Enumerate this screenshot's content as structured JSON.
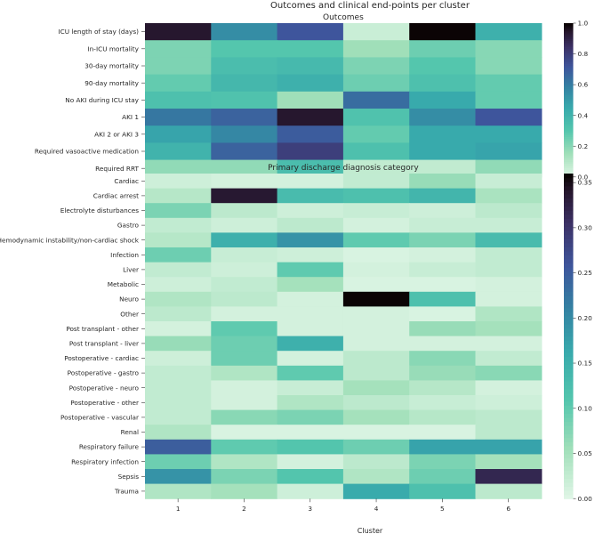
{
  "figure_title": "Outcomes and clinical end-points per cluster",
  "x_axis_label": "Cluster",
  "chart_data": [
    {
      "type": "heatmap",
      "title": "Outcomes",
      "columns": [
        "1",
        "2",
        "3",
        "4",
        "5",
        "6"
      ],
      "rows": [
        "ICU length of stay (days)",
        "In-ICU mortality",
        "30-day mortality",
        "90-day mortality",
        "No AKI during ICU stay",
        "AKI 1",
        "AKI 2 or AKI 3",
        "Required vasoactive medication",
        "Required RRT"
      ],
      "values": [
        [
          0.95,
          0.55,
          0.72,
          0.05,
          1.0,
          0.42
        ],
        [
          0.22,
          0.3,
          0.3,
          0.15,
          0.25,
          0.2
        ],
        [
          0.22,
          0.35,
          0.37,
          0.22,
          0.3,
          0.2
        ],
        [
          0.27,
          0.38,
          0.42,
          0.25,
          0.33,
          0.27
        ],
        [
          0.33,
          0.32,
          0.15,
          0.65,
          0.45,
          0.27
        ],
        [
          0.62,
          0.68,
          0.95,
          0.32,
          0.55,
          0.72
        ],
        [
          0.47,
          0.57,
          0.7,
          0.27,
          0.45,
          0.45
        ],
        [
          0.4,
          0.68,
          0.8,
          0.33,
          0.45,
          0.47
        ],
        [
          0.18,
          0.18,
          0.35,
          0.07,
          0.07,
          0.18
        ]
      ],
      "colorbar": {
        "min": 0.0,
        "max": 1.0,
        "ticks": [
          "0.0",
          "0.2",
          "0.4",
          "0.6",
          "0.8",
          "1.0"
        ]
      }
    },
    {
      "type": "heatmap",
      "title": "Primary discharge diagnosis category",
      "columns": [
        "1",
        "2",
        "3",
        "4",
        "5",
        "6"
      ],
      "rows": [
        "Cardiac",
        "Cardiac arrest",
        "Electrolyte disturbances",
        "Gastro",
        "Hemodynamic instability/non-cardiac shock",
        "Infection",
        "Liver",
        "Metabolic",
        "Neuro",
        "Other",
        "Post transplant - other",
        "Post transplant - liver",
        "Postoperative - cardiac",
        "Postoperative - gastro",
        "Postoperative - neuro",
        "Postoperative - other",
        "Postoperative - vascular",
        "Renal",
        "Respiratory failure",
        "Respiratory infection",
        "Sepsis",
        "Trauma"
      ],
      "values": [
        [
          0.015,
          0.01,
          0.01,
          0.025,
          0.06,
          0.02
        ],
        [
          0.035,
          0.34,
          0.13,
          0.12,
          0.14,
          0.045
        ],
        [
          0.08,
          0.03,
          0.015,
          0.02,
          0.015,
          0.03
        ],
        [
          0.025,
          0.015,
          0.03,
          0.01,
          0.02,
          0.02
        ],
        [
          0.035,
          0.15,
          0.19,
          0.1,
          0.08,
          0.13
        ],
        [
          0.09,
          0.02,
          0.015,
          0.005,
          0.01,
          0.025
        ],
        [
          0.025,
          0.015,
          0.1,
          0.01,
          0.02,
          0.025
        ],
        [
          0.015,
          0.025,
          0.05,
          0.005,
          0.005,
          0.01
        ],
        [
          0.04,
          0.03,
          0.01,
          0.36,
          0.12,
          0.01
        ],
        [
          0.03,
          0.01,
          0.01,
          0.01,
          0.005,
          0.04
        ],
        [
          0.01,
          0.1,
          0.01,
          0.01,
          0.06,
          0.05
        ],
        [
          0.06,
          0.09,
          0.15,
          0.01,
          0.01,
          0.01
        ],
        [
          0.015,
          0.09,
          0.01,
          0.03,
          0.07,
          0.025
        ],
        [
          0.025,
          0.04,
          0.1,
          0.03,
          0.06,
          0.07
        ],
        [
          0.025,
          0.01,
          0.02,
          0.05,
          0.035,
          0.01
        ],
        [
          0.025,
          0.01,
          0.04,
          0.03,
          0.02,
          0.015
        ],
        [
          0.025,
          0.07,
          0.08,
          0.05,
          0.035,
          0.03
        ],
        [
          0.04,
          0.005,
          0.005,
          0.005,
          0.005,
          0.03
        ],
        [
          0.25,
          0.1,
          0.11,
          0.09,
          0.17,
          0.17
        ],
        [
          0.09,
          0.04,
          0.01,
          0.03,
          0.08,
          0.05
        ],
        [
          0.19,
          0.08,
          0.11,
          0.04,
          0.09,
          0.32
        ],
        [
          0.04,
          0.05,
          0.015,
          0.16,
          0.12,
          0.03
        ]
      ],
      "colorbar": {
        "min": 0.0,
        "max": 0.36,
        "ticks": [
          "0.00",
          "0.05",
          "0.10",
          "0.15",
          "0.20",
          "0.25",
          "0.30",
          "0.35"
        ]
      }
    }
  ]
}
